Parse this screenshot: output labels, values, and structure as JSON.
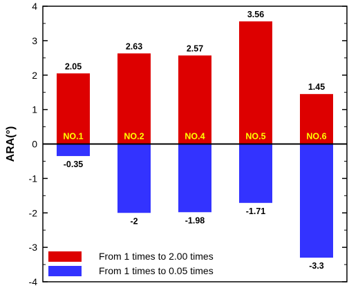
{
  "chart_data": {
    "type": "bar",
    "ylabel": "ARA(°)",
    "ylim": [
      -4,
      4
    ],
    "yticks": [
      -4,
      -3,
      -2,
      -1,
      0,
      1,
      2,
      3,
      4
    ],
    "categories": [
      "NO.1",
      "NO.2",
      "NO.4",
      "NO.5",
      "NO.6"
    ],
    "series": [
      {
        "name": "From 1 times to 2.00 times",
        "color": "#dd0000",
        "values": [
          2.05,
          2.63,
          2.57,
          3.56,
          1.45
        ],
        "labels": [
          "2.05",
          "2.63",
          "2.57",
          "3.56",
          "1.45"
        ]
      },
      {
        "name": "From 1 times to 0.05 times",
        "color": "#3333ff",
        "values": [
          -0.35,
          -2,
          -1.98,
          -1.71,
          -3.3
        ],
        "labels": [
          "-0.35",
          "-2",
          "-1.98",
          "-1.71",
          "-3.3"
        ]
      }
    ],
    "category_label_color": "#ffff00",
    "grid": false,
    "legend_position": "bottom-left"
  }
}
